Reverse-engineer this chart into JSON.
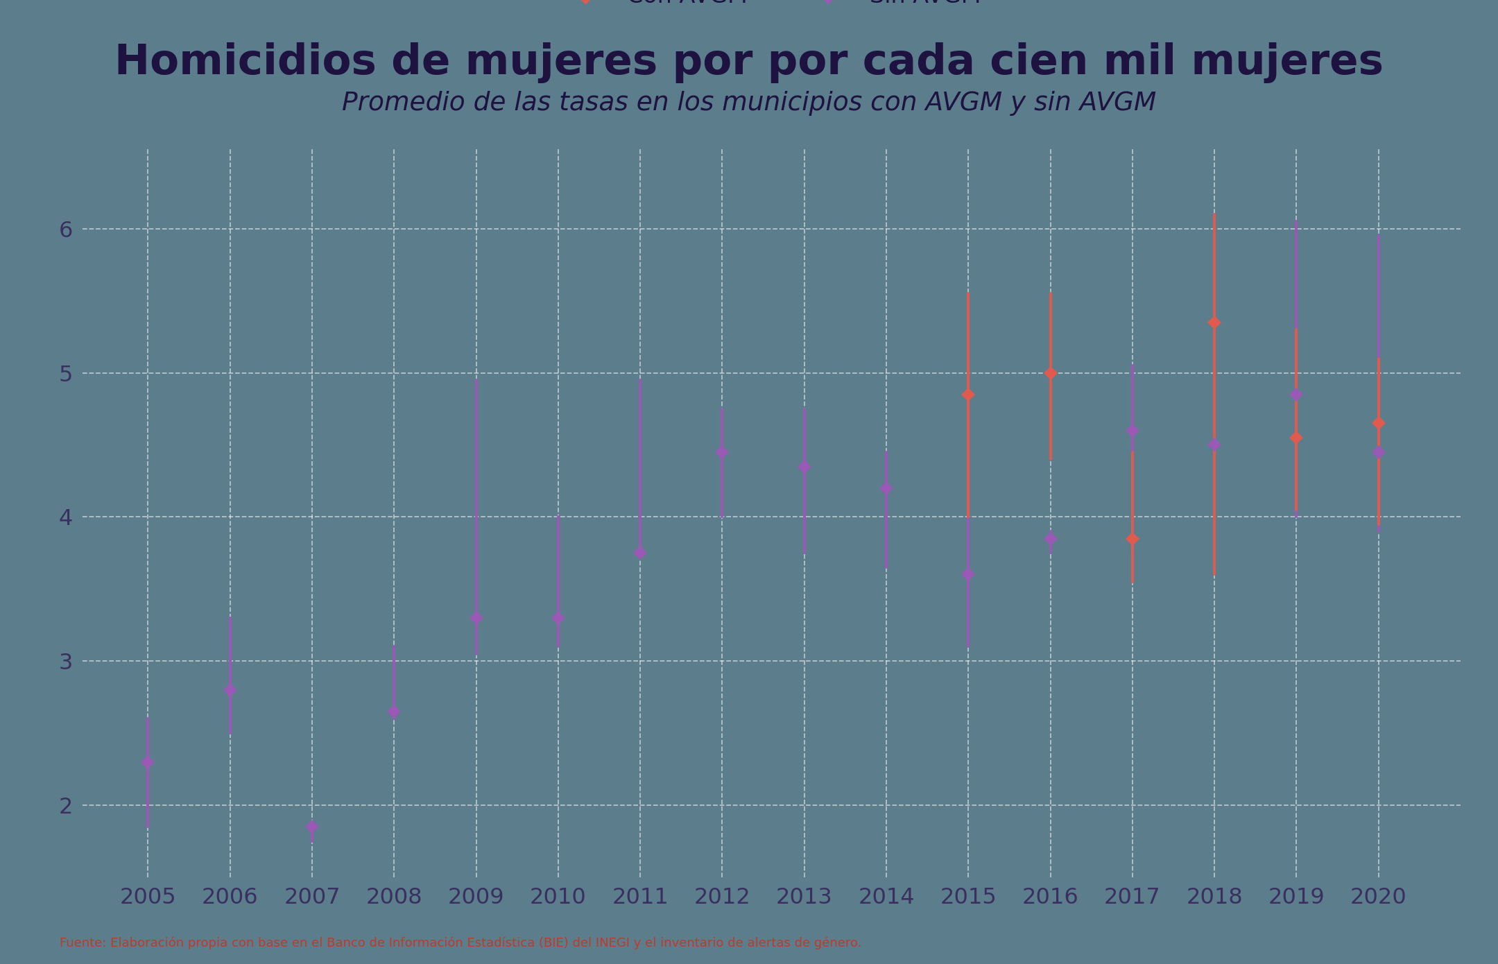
{
  "title": "Homicidios de mujeres por por cada cien mil mujeres",
  "subtitle": "Promedio de las tasas en los municipios con AVGM y sin AVGM",
  "footnote": "Fuente: Elaboración propia con base en el Banco de Información Estadística (BIE) del INEGI y el inventario de alertas de género.",
  "background_color": "#5c7d8c",
  "title_color": "#1e1240",
  "subtitle_color": "#1e1240",
  "tick_color": "#3a3060",
  "grid_color": "#ffffff",
  "footnote_color": "#c0392b",
  "years": [
    2005,
    2006,
    2007,
    2008,
    2009,
    2010,
    2011,
    2012,
    2013,
    2014,
    2015,
    2016,
    2017,
    2018,
    2019,
    2020
  ],
  "con_avgm_center": [
    null,
    null,
    null,
    null,
    null,
    null,
    null,
    null,
    null,
    null,
    4.85,
    5.0,
    3.85,
    5.35,
    4.55,
    4.65
  ],
  "con_avgm_low": [
    null,
    null,
    null,
    null,
    null,
    null,
    null,
    null,
    null,
    null,
    4.0,
    4.4,
    3.55,
    3.6,
    4.05,
    3.95
  ],
  "con_avgm_high": [
    null,
    null,
    null,
    null,
    null,
    null,
    null,
    null,
    null,
    null,
    5.55,
    5.55,
    4.45,
    6.1,
    5.3,
    5.1
  ],
  "con_avgm_color": "#e05a4e",
  "con_avgm_label": "Con AVGM",
  "sin_avgm_center": [
    2.3,
    2.8,
    1.85,
    2.65,
    3.3,
    3.3,
    3.75,
    4.45,
    4.35,
    4.2,
    3.6,
    3.85,
    4.6,
    4.5,
    4.85,
    4.45
  ],
  "sin_avgm_low": [
    1.85,
    2.5,
    1.75,
    2.6,
    3.05,
    3.1,
    3.75,
    4.0,
    3.75,
    3.65,
    3.1,
    3.75,
    3.75,
    4.45,
    4.0,
    3.9
  ],
  "sin_avgm_high": [
    2.6,
    3.3,
    1.85,
    3.1,
    4.95,
    4.0,
    4.95,
    4.75,
    4.75,
    4.45,
    4.8,
    3.9,
    5.05,
    4.5,
    6.05,
    5.95
  ],
  "sin_avgm_color": "#9b59b6",
  "sin_avgm_label": "Sin AVGM",
  "ylim": [
    1.5,
    6.55
  ],
  "yticks": [
    2,
    3,
    4,
    5,
    6
  ],
  "title_fontsize": 44,
  "subtitle_fontsize": 27,
  "tick_fontsize": 23,
  "legend_fontsize": 24
}
